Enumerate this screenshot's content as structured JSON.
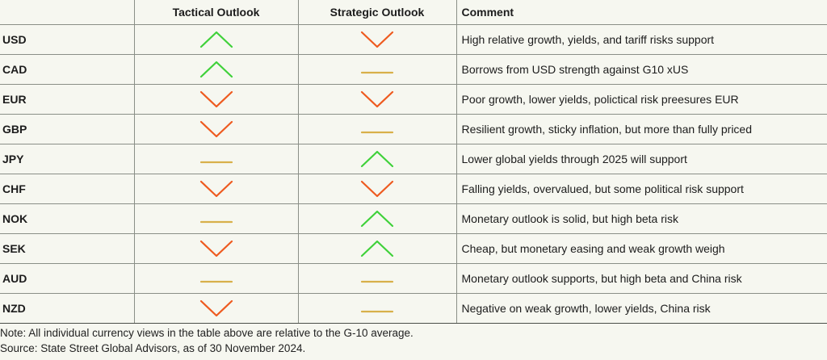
{
  "colors": {
    "up": "#3fd13a",
    "down": "#ee5a1f",
    "neutral": "#d8b04a",
    "grid": "#8a8f87",
    "background": "#f6f7f0"
  },
  "header": {
    "currency": "",
    "tactical": "Tactical Outlook",
    "strategic": "Strategic Outlook",
    "comment": "Comment"
  },
  "rows": [
    {
      "currency": "USD",
      "tactical": "up",
      "strategic": "down",
      "comment": "High relative growth, yields, and tariff risks support"
    },
    {
      "currency": "CAD",
      "tactical": "up",
      "strategic": "neutral",
      "comment": "Borrows from USD strength against G10 xUS"
    },
    {
      "currency": "EUR",
      "tactical": "down",
      "strategic": "down",
      "comment": "Poor growth, lower yields, polictical risk preesures EUR"
    },
    {
      "currency": "GBP",
      "tactical": "down",
      "strategic": "neutral",
      "comment": "Resilient growth, sticky inflation, but more than fully priced"
    },
    {
      "currency": "JPY",
      "tactical": "neutral",
      "strategic": "up",
      "comment": "Lower global yields through 2025 will support"
    },
    {
      "currency": "CHF",
      "tactical": "down",
      "strategic": "down",
      "comment": "Falling yields, overvalued, but some political risk support"
    },
    {
      "currency": "NOK",
      "tactical": "neutral",
      "strategic": "up",
      "comment": "Monetary outlook is solid, but high beta risk"
    },
    {
      "currency": "SEK",
      "tactical": "down",
      "strategic": "up",
      "comment": "Cheap, but monetary easing and weak growth weigh"
    },
    {
      "currency": "AUD",
      "tactical": "neutral",
      "strategic": "neutral",
      "comment": "Monetary outlook supports, but high beta and China risk"
    },
    {
      "currency": "NZD",
      "tactical": "down",
      "strategic": "neutral",
      "comment": "Negative on weak growth, lower yields, China risk"
    }
  ],
  "footnotes": {
    "note": "Note: All individual currency views in the table above are relative to the G-10 average.",
    "source": "Source: State Street Global Advisors, as of 30 November 2024."
  }
}
